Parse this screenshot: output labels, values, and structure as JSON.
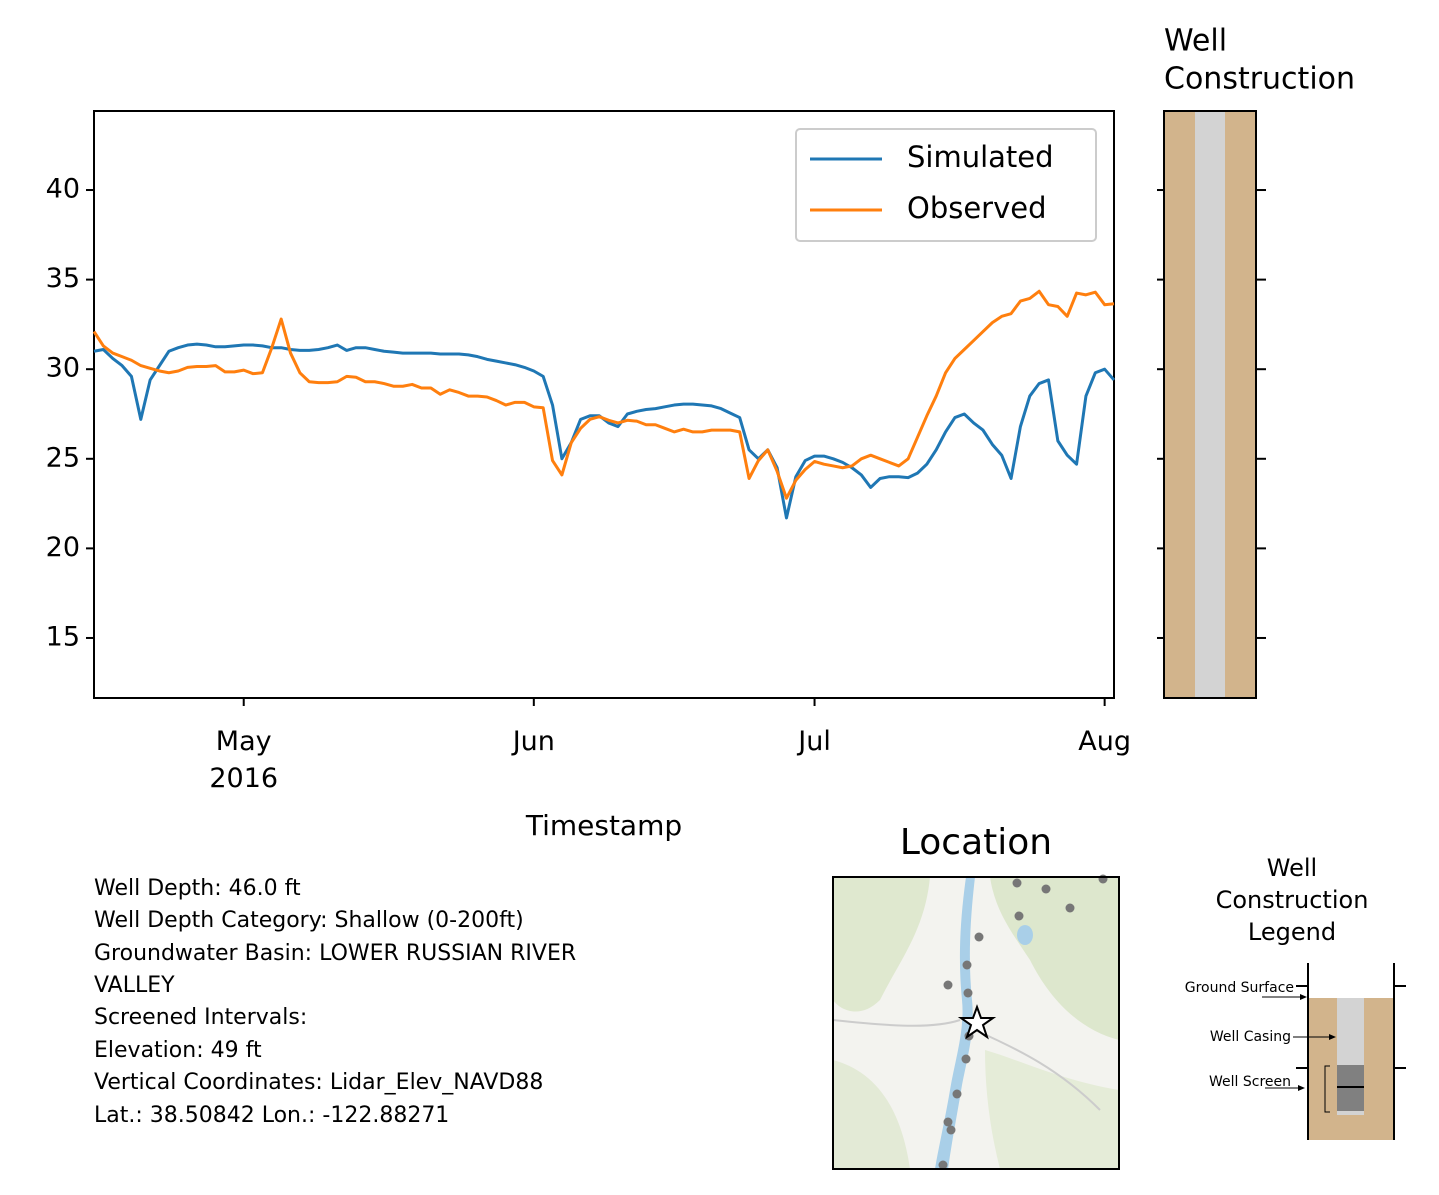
{
  "chart_data": {
    "type": "line",
    "x": [
      "2016-04-15",
      "2016-04-16",
      "2016-04-17",
      "2016-04-18",
      "2016-04-19",
      "2016-04-20",
      "2016-04-21",
      "2016-04-22",
      "2016-04-23",
      "2016-04-24",
      "2016-04-25",
      "2016-04-26",
      "2016-04-27",
      "2016-04-28",
      "2016-04-29",
      "2016-04-30",
      "2016-05-01",
      "2016-05-02",
      "2016-05-03",
      "2016-05-04",
      "2016-05-05",
      "2016-05-06",
      "2016-05-07",
      "2016-05-08",
      "2016-05-09",
      "2016-05-10",
      "2016-05-11",
      "2016-05-12",
      "2016-05-13",
      "2016-05-14",
      "2016-05-15",
      "2016-05-16",
      "2016-05-17",
      "2016-05-18",
      "2016-05-19",
      "2016-05-20",
      "2016-05-21",
      "2016-05-22",
      "2016-05-23",
      "2016-05-24",
      "2016-05-25",
      "2016-05-26",
      "2016-05-27",
      "2016-05-28",
      "2016-05-29",
      "2016-05-30",
      "2016-05-31",
      "2016-06-01",
      "2016-06-02",
      "2016-06-03",
      "2016-06-04",
      "2016-06-05",
      "2016-06-06",
      "2016-06-07",
      "2016-06-08",
      "2016-06-09",
      "2016-06-10",
      "2016-06-11",
      "2016-06-12",
      "2016-06-13",
      "2016-06-14",
      "2016-06-15",
      "2016-06-16",
      "2016-06-17",
      "2016-06-18",
      "2016-06-19",
      "2016-06-20",
      "2016-06-21",
      "2016-06-22",
      "2016-06-23",
      "2016-06-24",
      "2016-06-25",
      "2016-06-26",
      "2016-06-27",
      "2016-06-28",
      "2016-06-29",
      "2016-06-30",
      "2016-07-01",
      "2016-07-02",
      "2016-07-03",
      "2016-07-04",
      "2016-07-05",
      "2016-07-06",
      "2016-07-07",
      "2016-07-08",
      "2016-07-09",
      "2016-07-10",
      "2016-07-11",
      "2016-07-12",
      "2016-07-13",
      "2016-07-14",
      "2016-07-15",
      "2016-07-16",
      "2016-07-17",
      "2016-07-18",
      "2016-07-19",
      "2016-07-20",
      "2016-07-21",
      "2016-07-22",
      "2016-07-23",
      "2016-07-24",
      "2016-07-25",
      "2016-07-26",
      "2016-07-27",
      "2016-07-28",
      "2016-07-29",
      "2016-07-30",
      "2016-07-31",
      "2016-08-01",
      "2016-08-02"
    ],
    "xlim": [
      "2016-04-15",
      "2016-08-02"
    ],
    "xticks": [
      {
        "value": "2016-05-01",
        "label": "May\n2016"
      },
      {
        "value": "2016-06-01",
        "label": "Jun"
      },
      {
        "value": "2016-07-01",
        "label": "Jul"
      },
      {
        "value": "2016-08-01",
        "label": "Aug"
      }
    ],
    "xlabel": "Timestamp",
    "ylim": [
      11.65,
      44.41
    ],
    "yticks": [
      15,
      20,
      25,
      30,
      35,
      40
    ],
    "legend": "upper right",
    "series": [
      {
        "name": "Simulated",
        "color": "#1f77b4",
        "values": [
          31.0,
          31.1,
          30.6,
          30.2,
          29.6,
          27.2,
          29.4,
          30.2,
          31.0,
          31.2,
          31.35,
          31.4,
          31.35,
          31.25,
          31.25,
          31.3,
          31.35,
          31.35,
          31.3,
          31.2,
          31.2,
          31.1,
          31.05,
          31.05,
          31.1,
          31.2,
          31.35,
          31.05,
          31.2,
          31.2,
          31.1,
          31.0,
          30.95,
          30.9,
          30.9,
          30.9,
          30.9,
          30.85,
          30.85,
          30.85,
          30.8,
          30.7,
          30.55,
          30.45,
          30.35,
          30.25,
          30.1,
          29.9,
          29.6,
          28.0,
          25.0,
          25.9,
          27.2,
          27.4,
          27.4,
          27.0,
          26.8,
          27.5,
          27.65,
          27.75,
          27.8,
          27.9,
          28.0,
          28.05,
          28.05,
          28.0,
          27.95,
          27.8,
          27.55,
          27.3,
          25.5,
          25.0,
          25.5,
          24.5,
          21.7,
          24.0,
          24.9,
          25.15,
          25.15,
          25.0,
          24.8,
          24.5,
          24.1,
          23.4,
          23.9,
          24.0,
          24.0,
          23.95,
          24.2,
          24.7,
          25.5,
          26.5,
          27.3,
          27.5,
          27.0,
          26.6,
          25.8,
          25.2,
          23.9,
          26.8,
          28.5,
          29.2,
          29.4,
          26.0,
          25.2,
          24.7,
          28.5,
          29.8,
          30.0,
          29.4
        ]
      },
      {
        "name": "Observed",
        "color": "#ff7f0e",
        "values": [
          32.1,
          31.3,
          30.9,
          30.7,
          30.5,
          30.2,
          30.05,
          29.9,
          29.8,
          29.9,
          30.1,
          30.15,
          30.15,
          30.2,
          29.85,
          29.85,
          29.95,
          29.75,
          29.8,
          31.2,
          32.8,
          30.9,
          29.8,
          29.3,
          29.25,
          29.25,
          29.3,
          29.6,
          29.55,
          29.3,
          29.3,
          29.2,
          29.05,
          29.05,
          29.15,
          28.95,
          28.95,
          28.6,
          28.85,
          28.7,
          28.5,
          28.5,
          28.45,
          28.25,
          28.0,
          28.15,
          28.15,
          27.9,
          27.85,
          24.9,
          24.1,
          25.9,
          26.7,
          27.2,
          27.35,
          27.15,
          27.0,
          27.15,
          27.1,
          26.9,
          26.9,
          26.7,
          26.5,
          26.65,
          26.5,
          26.5,
          26.6,
          26.6,
          26.6,
          26.5,
          23.9,
          24.9,
          25.5,
          24.3,
          22.8,
          23.8,
          24.4,
          24.85,
          24.7,
          24.6,
          24.5,
          24.6,
          25.0,
          25.2,
          25.0,
          24.8,
          24.6,
          25.0,
          26.2,
          27.4,
          28.5,
          29.8,
          30.6,
          31.1,
          31.6,
          32.1,
          32.6,
          32.95,
          33.1,
          33.8,
          33.95,
          34.35,
          33.6,
          33.5,
          32.95,
          34.25,
          34.15,
          34.3,
          33.6,
          33.65
        ]
      }
    ]
  },
  "well_construction": {
    "title": [
      "Well",
      "Construction"
    ]
  },
  "info": {
    "lines": [
      "Well Depth: 46.0 ft",
      "Well Depth Category: Shallow (0-200ft)",
      "Groundwater Basin: LOWER RUSSIAN RIVER",
      "VALLEY",
      "Screened Intervals:",
      "Elevation: 49 ft",
      "Vertical Coordinates: Lidar_Elev_NAVD88",
      "Lat.: 38.50842 Lon.: -122.88271"
    ]
  },
  "location": {
    "title": "Location"
  },
  "well_legend": {
    "title": [
      "Well",
      "Construction",
      "Legend"
    ],
    "labels": [
      "Ground Surface",
      "Well Casing",
      "Well Screen"
    ]
  }
}
